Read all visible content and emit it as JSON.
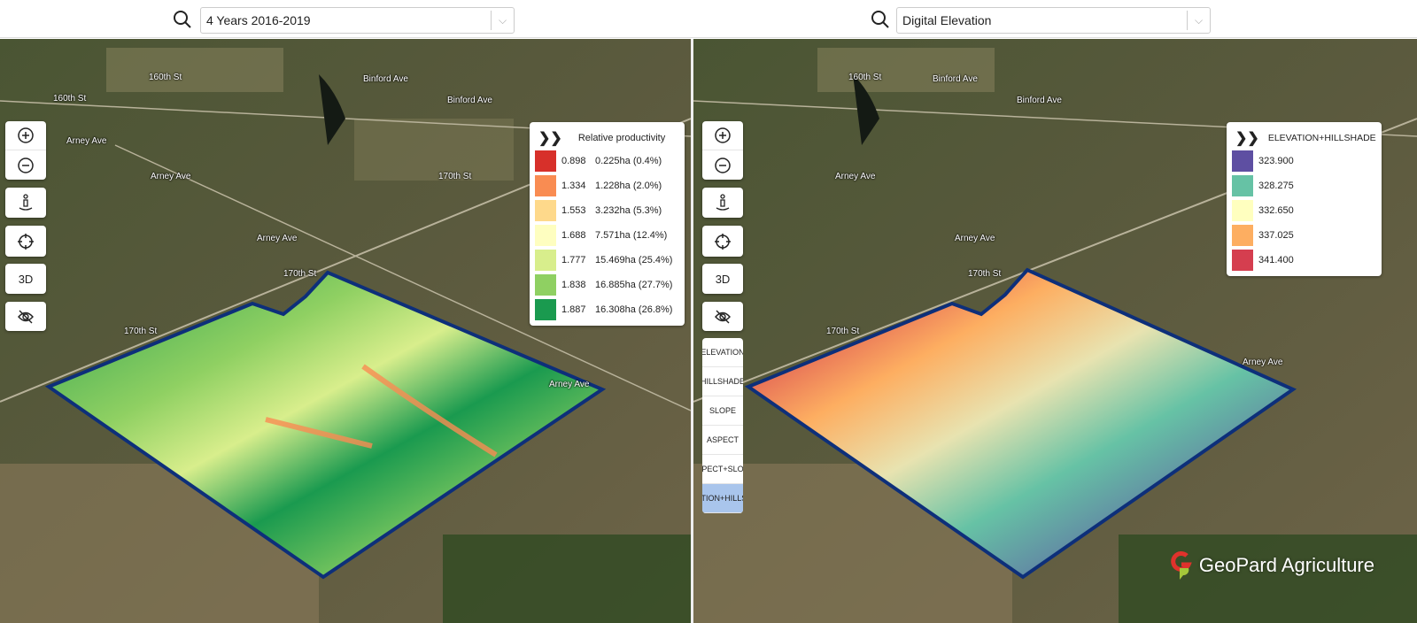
{
  "left": {
    "select_value": "4 Years 2016-2019",
    "controls": {
      "zoom_in": "+",
      "zoom_out": "−",
      "threed": "3D"
    },
    "legend": {
      "title": "Relative productivity",
      "items": [
        {
          "value": "0.898",
          "area": "0.225ha (0.4%)",
          "color": "#d7302a"
        },
        {
          "value": "1.334",
          "area": "1.228ha (2.0%)",
          "color": "#f98c52"
        },
        {
          "value": "1.553",
          "area": "3.232ha (5.3%)",
          "color": "#fed98b"
        },
        {
          "value": "1.688",
          "area": "7.571ha (12.4%)",
          "color": "#fefec0"
        },
        {
          "value": "1.777",
          "area": "15.469ha (25.4%)",
          "color": "#d8ee8c"
        },
        {
          "value": "1.838",
          "area": "16.885ha (27.7%)",
          "color": "#8fd062"
        },
        {
          "value": "1.887",
          "area": "16.308ha (26.8%)",
          "color": "#1a9a4f"
        }
      ]
    },
    "roads": [
      "160th St",
      "160th St",
      "Binford Ave",
      "Binford Ave",
      "Arney Ave",
      "Arney Ave",
      "170th St",
      "170th St",
      "170th St",
      "Arney Ave",
      "Arney Ave"
    ]
  },
  "right": {
    "select_value": "Digital Elevation",
    "controls": {
      "threed": "3D"
    },
    "layers": [
      "ELEVATION",
      "HILLSHADE",
      "SLOPE",
      "ASPECT",
      "ASPECT+SLOPE",
      "ELEVATION+HILLSHADE"
    ],
    "active_layer": "ELEVATION+HILLSHADE",
    "legend": {
      "title": "ELEVATION+HILLSHADE",
      "items": [
        {
          "value": "323.900",
          "color": "#5e4fa2"
        },
        {
          "value": "328.275",
          "color": "#66c2a5"
        },
        {
          "value": "332.650",
          "color": "#ffffbf"
        },
        {
          "value": "337.025",
          "color": "#fdae61"
        },
        {
          "value": "341.400",
          "color": "#d53e4f"
        }
      ]
    },
    "roads": [
      "160th St",
      "Binford Ave",
      "Binford Ave",
      "Arney Ave",
      "170th St",
      "170th St",
      "Arney Ave",
      "Arney Ave"
    ]
  },
  "brand": "GeoPard Agriculture",
  "colors": {
    "boundary": "#0d2f7a",
    "active_layer": "#a9c5ec"
  }
}
